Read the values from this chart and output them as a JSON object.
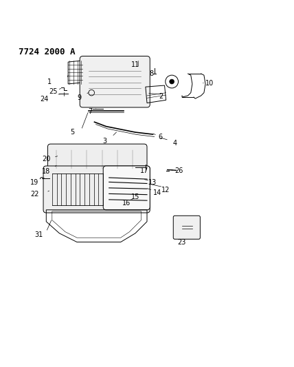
{
  "title": "7724 2000 A",
  "bg_color": "#ffffff",
  "line_color": "#000000",
  "title_fontsize": 9,
  "label_fontsize": 7,
  "fig_width": 4.28,
  "fig_height": 5.33,
  "dpi": 100
}
